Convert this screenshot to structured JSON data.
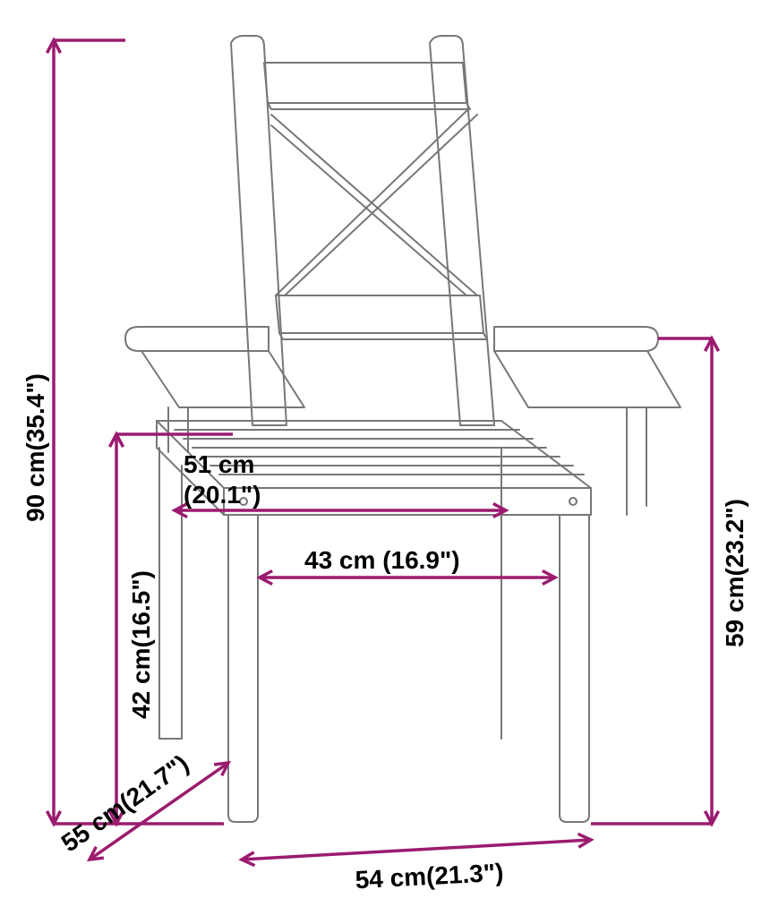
{
  "diagram": {
    "type": "dimensioned-drawing",
    "background_color": "#ffffff",
    "chair_line_color": "#777777",
    "chair_line_width": 2,
    "dimension_line_color": "#9b1b6f",
    "dimension_line_width": 3.5,
    "text_color": "#000000",
    "text_fontsize": 28,
    "text_fontweight": 600,
    "dimensions": {
      "total_height": {
        "cm": "90 cm",
        "in": "(35.4\")"
      },
      "seat_height": {
        "cm": "42 cm",
        "in": "(16.5\")"
      },
      "arm_height": {
        "cm": "59 cm",
        "in": "(23.2\")"
      },
      "seat_depth_top": {
        "cm": "51 cm",
        "in": "(20.1\")"
      },
      "seat_width_inner": {
        "cm": "43 cm",
        "in": "(16.9\")"
      },
      "depth": {
        "cm": "55 cm",
        "in": "(21.7\")"
      },
      "width": {
        "cm": "54 cm",
        "in": "(21.3\")"
      }
    }
  }
}
